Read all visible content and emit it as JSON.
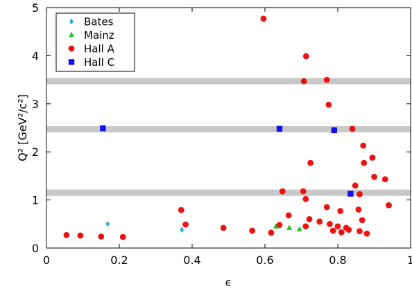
{
  "chart_data": {
    "type": "scatter",
    "title": "",
    "xlabel": "ϵ",
    "ylabel": "Q² [GeV²/c²]",
    "xlim": [
      0,
      1
    ],
    "ylim": [
      0,
      5
    ],
    "xticks": [
      0,
      0.2,
      0.4,
      0.6,
      0.8,
      1
    ],
    "yticks": [
      0,
      1,
      2,
      3,
      4,
      5
    ],
    "x_tick_labels": [
      "0",
      "0.2",
      "0.4",
      "0.6",
      "0.8",
      "1"
    ],
    "y_tick_labels": [
      "0",
      "1",
      "2",
      "3",
      "4",
      "5"
    ],
    "grid": false,
    "legend_position": "top-left",
    "reference_bands_y": [
      1.15,
      2.47,
      3.47
    ],
    "band_color": "#c8c8c8",
    "series": [
      {
        "name": "Bates",
        "marker": "diamond",
        "color": "#29abe2",
        "points": [
          [
            0.168,
            0.5
          ],
          [
            0.372,
            0.38
          ]
        ]
      },
      {
        "name": "Mainz",
        "marker": "triangle",
        "color": "#1fc11f",
        "points": [
          [
            0.63,
            0.45
          ],
          [
            0.667,
            0.42
          ],
          [
            0.695,
            0.39
          ]
        ]
      },
      {
        "name": "Hall A",
        "marker": "circle",
        "color": "#ee1111",
        "points": [
          [
            0.055,
            0.27
          ],
          [
            0.093,
            0.26
          ],
          [
            0.15,
            0.24
          ],
          [
            0.21,
            0.23
          ],
          [
            0.37,
            0.79
          ],
          [
            0.382,
            0.49
          ],
          [
            0.486,
            0.42
          ],
          [
            0.565,
            0.36
          ],
          [
            0.596,
            4.77
          ],
          [
            0.617,
            0.32
          ],
          [
            0.64,
            0.48
          ],
          [
            0.648,
            1.18
          ],
          [
            0.665,
            0.68
          ],
          [
            0.705,
            1.18
          ],
          [
            0.707,
            3.47
          ],
          [
            0.712,
            1.02
          ],
          [
            0.712,
            0.45
          ],
          [
            0.713,
            3.99
          ],
          [
            0.722,
            0.6
          ],
          [
            0.725,
            1.77
          ],
          [
            0.75,
            0.55
          ],
          [
            0.77,
            3.5
          ],
          [
            0.77,
            0.85
          ],
          [
            0.775,
            2.98
          ],
          [
            0.778,
            0.5
          ],
          [
            0.787,
            0.36
          ],
          [
            0.8,
            0.45
          ],
          [
            0.807,
            0.77
          ],
          [
            0.81,
            0.33
          ],
          [
            0.823,
            0.42
          ],
          [
            0.83,
            0.38
          ],
          [
            0.84,
            2.48
          ],
          [
            0.848,
            1.3
          ],
          [
            0.857,
            0.8
          ],
          [
            0.86,
            1.12
          ],
          [
            0.86,
            0.35
          ],
          [
            0.867,
            0.58
          ],
          [
            0.87,
            2.13
          ],
          [
            0.872,
            1.77
          ],
          [
            0.88,
            0.3
          ],
          [
            0.895,
            1.88
          ],
          [
            0.9,
            1.48
          ],
          [
            0.93,
            1.43
          ],
          [
            0.94,
            0.89
          ]
        ]
      },
      {
        "name": "Hall C",
        "marker": "square",
        "color": "#1111ee",
        "points": [
          [
            0.155,
            2.49
          ],
          [
            0.64,
            2.48
          ],
          [
            0.79,
            2.45
          ],
          [
            0.835,
            1.13
          ]
        ]
      }
    ]
  }
}
